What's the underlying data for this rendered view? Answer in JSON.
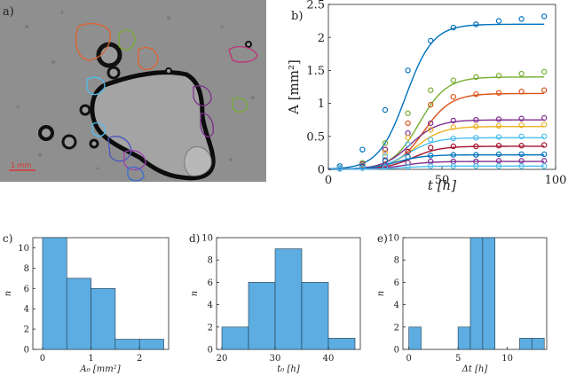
{
  "panels": {
    "a": {
      "label": "a)",
      "scale_bar_label": "1 mm",
      "colors": {
        "background": "#8f8f8f",
        "scale_bar": "#e03030"
      }
    },
    "b": {
      "label": "b)",
      "chart_data": {
        "type": "line",
        "xlabel": "t [h]",
        "ylabel": "A [mm²]",
        "xlim": [
          0,
          100
        ],
        "ylim": [
          0,
          2.5
        ],
        "xticks": [
          0,
          50,
          100
        ],
        "yticks": [
          0,
          0.5,
          1,
          1.5,
          2,
          2.5
        ],
        "grid": false,
        "sample_times": [
          5,
          15,
          25,
          35,
          45,
          55,
          65,
          75,
          85,
          95
        ],
        "series": [
          {
            "color": "#0072BD",
            "amax": 2.2,
            "t0": 34,
            "w": 6,
            "points": [
              0.05,
              0.3,
              0.9,
              1.5,
              1.95,
              2.15,
              2.2,
              2.25,
              2.28,
              2.32
            ]
          },
          {
            "color": "#77AC30",
            "amax": 1.4,
            "t0": 40,
            "w": 6,
            "points": [
              0.02,
              0.1,
              0.4,
              0.85,
              1.2,
              1.35,
              1.4,
              1.42,
              1.45,
              1.48
            ]
          },
          {
            "color": "#D95319",
            "amax": 1.15,
            "t0": 42,
            "w": 6,
            "points": [
              0.02,
              0.08,
              0.3,
              0.7,
              0.98,
              1.1,
              1.14,
              1.16,
              1.18,
              1.2
            ]
          },
          {
            "color": "#7E2F8E",
            "amax": 0.75,
            "t0": 36,
            "w": 6,
            "points": [
              0.02,
              0.08,
              0.3,
              0.55,
              0.7,
              0.74,
              0.75,
              0.76,
              0.77,
              0.78
            ]
          },
          {
            "color": "#EDB120",
            "amax": 0.65,
            "t0": 38,
            "w": 6,
            "points": [
              0.02,
              0.06,
              0.25,
              0.48,
              0.6,
              0.64,
              0.65,
              0.66,
              0.67,
              0.68
            ]
          },
          {
            "color": "#4DBEEE",
            "amax": 0.48,
            "t0": 35,
            "w": 6,
            "points": [
              0.02,
              0.05,
              0.2,
              0.38,
              0.45,
              0.47,
              0.48,
              0.49,
              0.5,
              0.5
            ]
          },
          {
            "color": "#A2142F",
            "amax": 0.35,
            "t0": 37,
            "w": 6,
            "points": [
              0.01,
              0.04,
              0.14,
              0.27,
              0.33,
              0.35,
              0.35,
              0.36,
              0.36,
              0.37
            ]
          },
          {
            "color": "#0072BD",
            "amax": 0.22,
            "t0": 30,
            "w": 6,
            "points": [
              0.01,
              0.05,
              0.13,
              0.19,
              0.21,
              0.22,
              0.22,
              0.23,
              0.23,
              0.23
            ]
          },
          {
            "color": "#7E2F8E",
            "amax": 0.12,
            "t0": 33,
            "w": 6,
            "points": [
              0.01,
              0.02,
              0.06,
              0.1,
              0.12,
              0.12,
              0.12,
              0.13,
              0.13,
              0.13
            ]
          },
          {
            "color": "#4DBEEE",
            "amax": 0.05,
            "t0": 32,
            "w": 6,
            "points": [
              0.01,
              0.02,
              0.03,
              0.04,
              0.05,
              0.05,
              0.05,
              0.05,
              0.05,
              0.05
            ]
          }
        ]
      }
    },
    "c": {
      "label": "c)",
      "chart_data": {
        "type": "bar",
        "xlabel": "A₀ [mm²]",
        "ylabel": "n",
        "xlim": [
          -0.2,
          2.6
        ],
        "ylim": [
          0,
          11
        ],
        "xticks": [
          0,
          1,
          2
        ],
        "yticks": [
          0,
          2,
          4,
          6,
          8,
          10
        ],
        "bin_edges": [
          0,
          0.5,
          1.0,
          1.5,
          2.0,
          2.5
        ],
        "values": [
          11,
          7,
          6,
          1,
          1
        ],
        "color": "#5DADE2"
      }
    },
    "d": {
      "label": "d)",
      "chart_data": {
        "type": "bar",
        "xlabel": "t₀ [h]",
        "ylabel": "n",
        "xlim": [
          19,
          46
        ],
        "ylim": [
          0,
          10
        ],
        "xticks": [
          20,
          30,
          40
        ],
        "yticks": [
          0,
          2,
          4,
          6,
          8,
          10
        ],
        "bin_edges": [
          20,
          25,
          30,
          35,
          40,
          45
        ],
        "values": [
          2,
          6,
          9,
          6,
          1
        ],
        "color": "#5DADE2"
      }
    },
    "e": {
      "label": "e)",
      "chart_data": {
        "type": "bar",
        "xlabel": "Δt [h]",
        "ylabel": "n",
        "xlim": [
          -0.6,
          14
        ],
        "ylim": [
          0,
          10
        ],
        "xticks": [
          0,
          5,
          10
        ],
        "yticks": [
          0,
          2,
          4,
          6,
          8,
          10
        ],
        "bin_edges": [
          0,
          1.25,
          2.5,
          3.75,
          5,
          6.25,
          7.5,
          8.75,
          10,
          11.25,
          12.5,
          13.75
        ],
        "values": [
          2,
          0,
          0,
          0,
          2,
          10,
          10,
          0,
          0,
          1,
          1
        ],
        "color": "#5DADE2"
      }
    }
  }
}
